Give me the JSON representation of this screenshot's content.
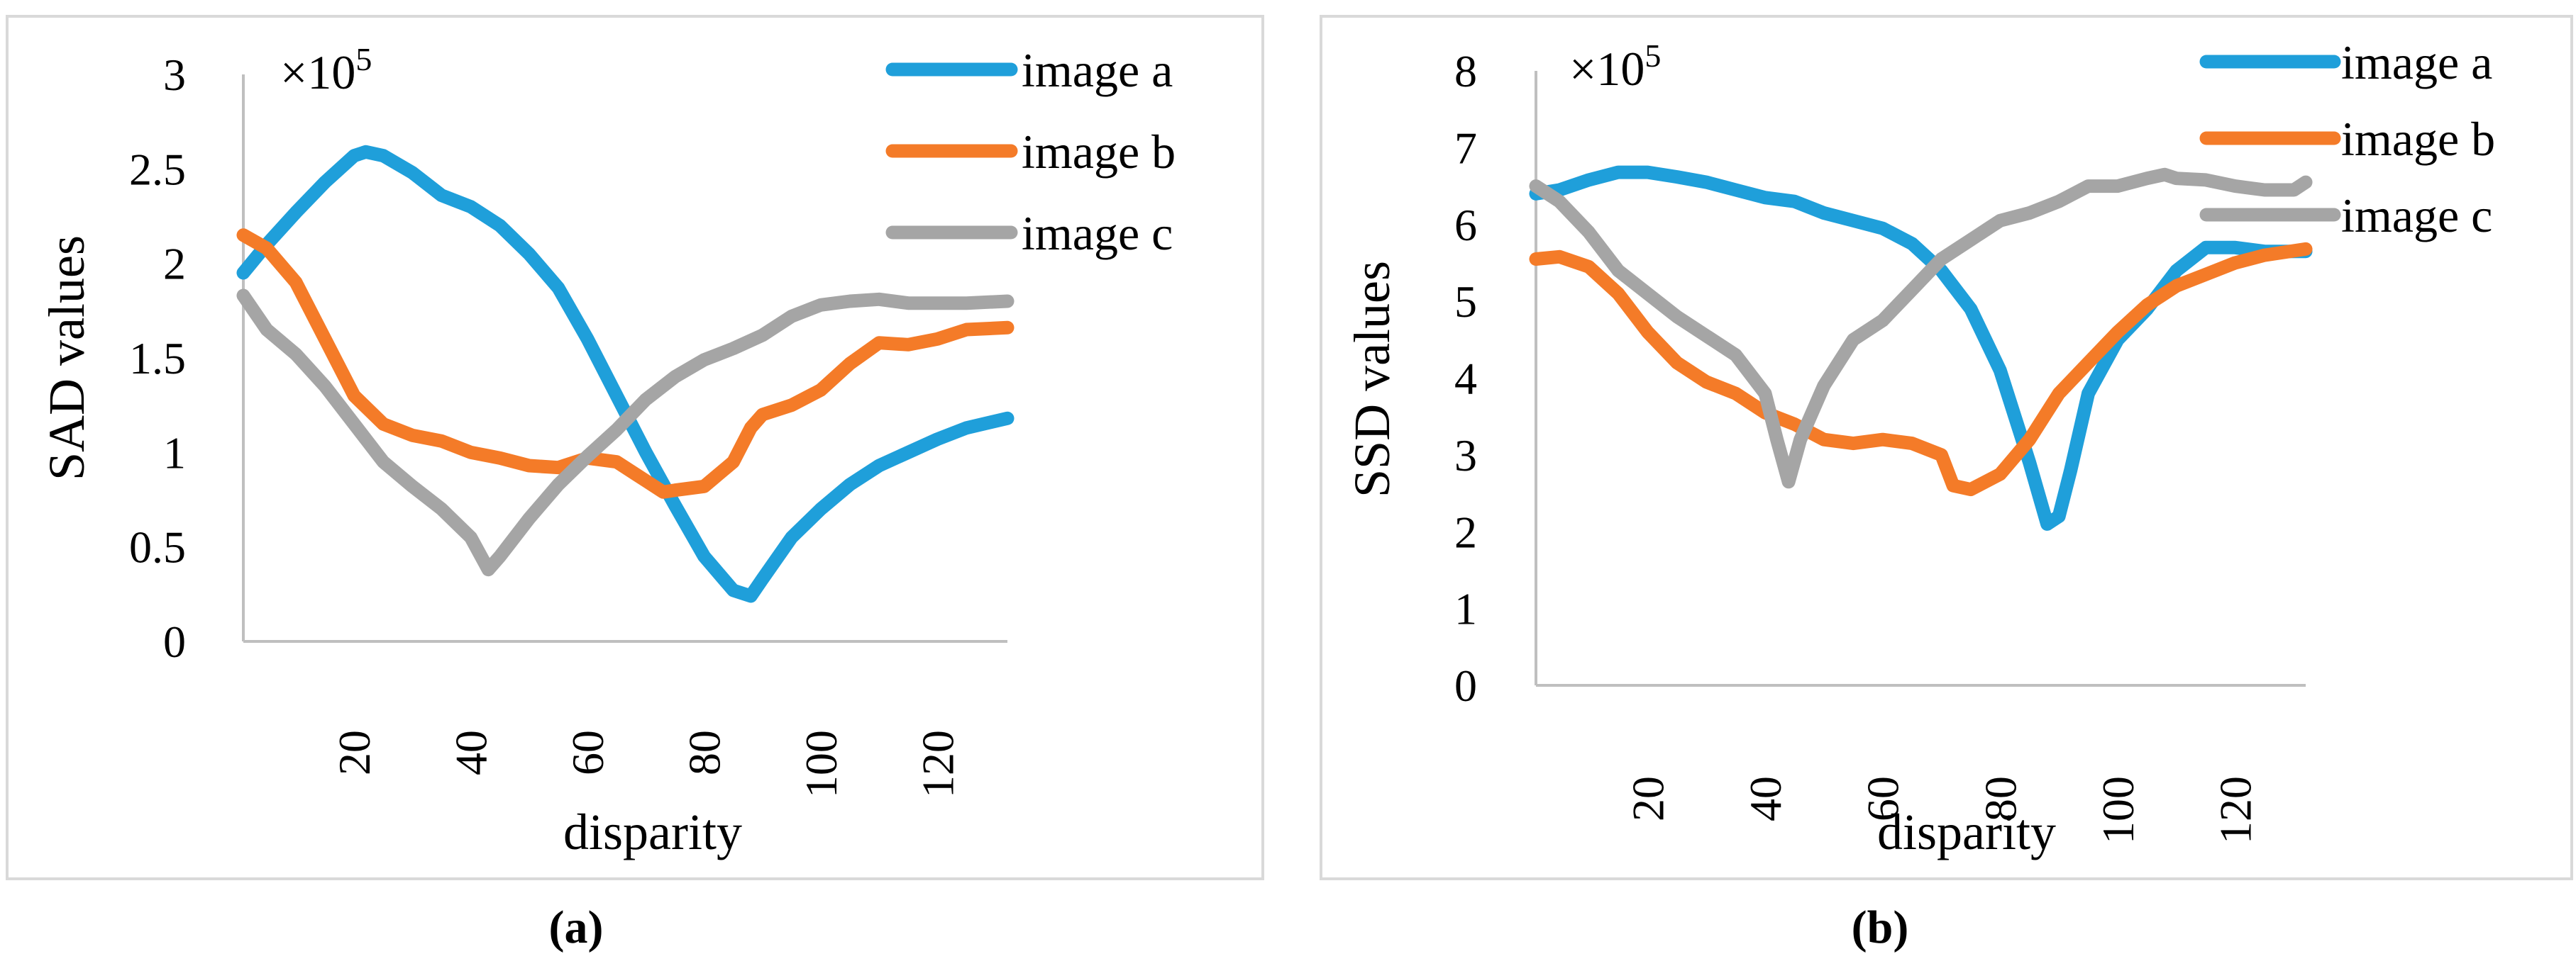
{
  "panels": [
    {
      "caption": "(a)",
      "multiplier_prefix": "×10",
      "multiplier_exp": "5",
      "chart_data": {
        "type": "line",
        "title": "",
        "xlabel": "disparity",
        "ylabel": "SAD values",
        "xlim": [
          1,
          132
        ],
        "ylim": [
          0,
          3
        ],
        "xticks": [
          20,
          40,
          60,
          80,
          100,
          120
        ],
        "yticks": [
          0,
          0.5,
          1,
          1.5,
          2,
          2.5,
          3
        ],
        "ytick_labels": [
          "0",
          "0.5",
          "1",
          "1.5",
          "2",
          "2.5",
          "3"
        ],
        "legend_position": "top-right",
        "series": [
          {
            "name": "image a",
            "color": "#1f9fda",
            "x": [
              1,
              5,
              10,
              15,
              20,
              22,
              25,
              30,
              35,
              40,
              45,
              50,
              55,
              60,
              65,
              70,
              75,
              80,
              85,
              88,
              90,
              95,
              100,
              105,
              110,
              115,
              120,
              125,
              132
            ],
            "y": [
              1.95,
              2.1,
              2.27,
              2.43,
              2.57,
              2.59,
              2.57,
              2.48,
              2.36,
              2.3,
              2.2,
              2.05,
              1.87,
              1.6,
              1.3,
              1.0,
              0.72,
              0.45,
              0.27,
              0.24,
              0.33,
              0.55,
              0.7,
              0.83,
              0.93,
              1.0,
              1.07,
              1.13,
              1.18
            ]
          },
          {
            "name": "image b",
            "color": "#f47b28",
            "x": [
              1,
              5,
              10,
              15,
              20,
              25,
              30,
              35,
              40,
              45,
              50,
              55,
              60,
              65,
              70,
              73,
              75,
              80,
              85,
              88,
              90,
              95,
              100,
              105,
              110,
              115,
              120,
              125,
              132
            ],
            "y": [
              2.15,
              2.08,
              1.9,
              1.6,
              1.3,
              1.15,
              1.09,
              1.06,
              1.0,
              0.97,
              0.93,
              0.92,
              0.97,
              0.95,
              0.85,
              0.79,
              0.8,
              0.82,
              0.95,
              1.13,
              1.2,
              1.25,
              1.33,
              1.47,
              1.58,
              1.57,
              1.6,
              1.65,
              1.66
            ]
          },
          {
            "name": "image c",
            "color": "#a5a5a5",
            "x": [
              1,
              5,
              10,
              15,
              20,
              25,
              30,
              35,
              40,
              43,
              45,
              50,
              55,
              60,
              65,
              70,
              75,
              80,
              85,
              90,
              95,
              100,
              105,
              110,
              115,
              120,
              125,
              132
            ],
            "y": [
              1.83,
              1.65,
              1.52,
              1.35,
              1.15,
              0.95,
              0.82,
              0.7,
              0.55,
              0.38,
              0.45,
              0.65,
              0.83,
              0.98,
              1.12,
              1.28,
              1.4,
              1.49,
              1.55,
              1.62,
              1.72,
              1.78,
              1.8,
              1.81,
              1.79,
              1.79,
              1.79,
              1.8
            ]
          }
        ]
      }
    },
    {
      "caption": "(b)",
      "multiplier_prefix": "×10",
      "multiplier_exp": "5",
      "chart_data": {
        "type": "line",
        "title": "",
        "xlabel": "disparity",
        "ylabel": "SSD values",
        "xlim": [
          1,
          132
        ],
        "ylim": [
          0,
          8
        ],
        "xticks": [
          20,
          40,
          60,
          80,
          100,
          120
        ],
        "yticks": [
          0,
          1,
          2,
          3,
          4,
          5,
          6,
          7,
          8
        ],
        "ytick_labels": [
          "0",
          "1",
          "2",
          "3",
          "4",
          "5",
          "6",
          "7",
          "8"
        ],
        "legend_position": "top-right",
        "series": [
          {
            "name": "image a",
            "color": "#1f9fda",
            "x": [
              1,
              5,
              10,
              15,
              20,
              25,
              30,
              35,
              40,
              45,
              50,
              55,
              60,
              65,
              70,
              75,
              80,
              85,
              88,
              90,
              92,
              95,
              100,
              105,
              110,
              115,
              120,
              125,
              132
            ],
            "y": [
              6.4,
              6.45,
              6.58,
              6.68,
              6.68,
              6.62,
              6.55,
              6.45,
              6.35,
              6.3,
              6.15,
              6.05,
              5.95,
              5.75,
              5.4,
              4.9,
              4.1,
              2.9,
              2.1,
              2.2,
              2.8,
              3.8,
              4.5,
              4.9,
              5.4,
              5.7,
              5.7,
              5.65,
              5.65
            ]
          },
          {
            "name": "image b",
            "color": "#f47b28",
            "x": [
              1,
              5,
              10,
              15,
              20,
              25,
              30,
              35,
              40,
              45,
              50,
              55,
              60,
              65,
              70,
              72,
              75,
              80,
              85,
              90,
              95,
              100,
              105,
              110,
              115,
              120,
              125,
              132
            ],
            "y": [
              5.55,
              5.58,
              5.45,
              5.1,
              4.6,
              4.2,
              3.95,
              3.8,
              3.55,
              3.4,
              3.2,
              3.15,
              3.2,
              3.15,
              3.0,
              2.6,
              2.55,
              2.75,
              3.2,
              3.8,
              4.2,
              4.6,
              4.95,
              5.2,
              5.35,
              5.5,
              5.6,
              5.68
            ]
          },
          {
            "name": "image c",
            "color": "#a5a5a5",
            "x": [
              1,
              5,
              10,
              15,
              20,
              25,
              30,
              35,
              40,
              42,
              44,
              46,
              50,
              55,
              60,
              65,
              70,
              75,
              80,
              85,
              90,
              95,
              100,
              105,
              108,
              110,
              115,
              120,
              125,
              130,
              132
            ],
            "y": [
              6.5,
              6.3,
              5.9,
              5.4,
              5.1,
              4.8,
              4.55,
              4.3,
              3.8,
              3.2,
              2.65,
              3.2,
              3.9,
              4.5,
              4.75,
              5.15,
              5.55,
              5.8,
              6.05,
              6.15,
              6.3,
              6.5,
              6.5,
              6.6,
              6.65,
              6.6,
              6.58,
              6.5,
              6.45,
              6.45,
              6.55
            ]
          }
        ]
      }
    }
  ]
}
